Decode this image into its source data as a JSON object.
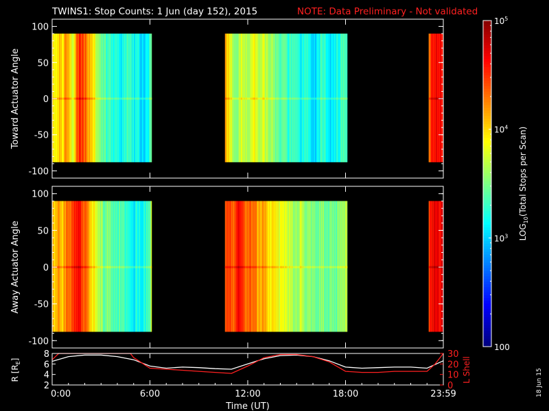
{
  "title": "TWINS1: Stop Counts:  1 Jun (day 152), 2015",
  "note": "NOTE: Data Preliminary - Not validated",
  "stamp": "18 Jun 15",
  "colors": {
    "note": "#ff2020",
    "r_line": "#ffffff",
    "l_line": "#ff2020",
    "background": "#000000"
  },
  "chart_data": [
    {
      "type": "heatmap",
      "name": "toward-panel",
      "ylabel": "Toward Actuator Angle",
      "xlim": [
        0,
        24
      ],
      "ylim": [
        -110,
        110
      ],
      "yticks": [
        100,
        50,
        0,
        -50,
        -100
      ],
      "data_extent": {
        "ymin": -88,
        "ymax": 90
      },
      "segments": [
        {
          "start": 0,
          "end": 6.1,
          "profile": [
            4.0,
            3.8,
            4.1,
            3.9,
            4.2,
            4.0,
            3.7,
            4.3,
            4.5,
            4.4,
            4.2,
            4.1,
            3.9,
            3.6,
            3.5,
            3.4,
            3.3,
            3.3,
            3.2,
            3.2,
            3.1,
            3.2,
            3.3,
            3.2,
            3.1,
            3.2,
            3.0,
            3.1,
            3.2,
            3.6
          ]
        },
        {
          "start": 10.6,
          "end": 18.1,
          "profile": [
            4.2,
            3.9,
            3.6,
            3.5,
            3.8,
            3.6,
            3.7,
            3.9,
            3.5,
            3.8,
            3.6,
            3.7,
            3.4,
            3.3,
            3.5,
            3.2,
            3.3,
            3.4,
            3.1,
            3.3,
            3.2,
            3.0,
            3.1,
            3.3,
            3.2,
            3.0,
            3.1,
            3.2,
            3.3,
            3.4
          ]
        },
        {
          "start": 23.1,
          "end": 24,
          "profile": [
            4.3,
            4.5,
            4.6,
            4.7,
            4.6,
            4.5
          ]
        }
      ]
    },
    {
      "type": "heatmap",
      "name": "away-panel",
      "ylabel": "Away Actuator Angle",
      "xlim": [
        0,
        24
      ],
      "ylim": [
        -110,
        110
      ],
      "yticks": [
        100,
        50,
        0,
        -50,
        -100
      ],
      "data_extent": {
        "ymin": -88,
        "ymax": 90
      },
      "segments": [
        {
          "start": 0,
          "end": 6.1,
          "profile": [
            4.1,
            4.0,
            4.2,
            4.0,
            4.3,
            4.2,
            4.4,
            4.6,
            4.6,
            4.4,
            4.3,
            4.0,
            3.9,
            3.7,
            3.6,
            3.4,
            3.5,
            3.4,
            3.3,
            3.3,
            3.4,
            3.3,
            3.3,
            3.2,
            3.1,
            3.2,
            3.1,
            3.2,
            3.3,
            3.8
          ]
        },
        {
          "start": 10.6,
          "end": 18.1,
          "profile": [
            4.4,
            4.5,
            4.3,
            4.6,
            4.5,
            4.2,
            4.4,
            4.3,
            4.1,
            4.2,
            4.0,
            3.9,
            3.9,
            3.8,
            3.8,
            3.7,
            3.6,
            3.6,
            3.7,
            3.5,
            3.6,
            3.5,
            3.4,
            3.6,
            3.4,
            3.5,
            3.4,
            3.5,
            3.6,
            3.7
          ]
        },
        {
          "start": 23.1,
          "end": 24,
          "profile": [
            4.4,
            4.6,
            4.7,
            4.6,
            4.7,
            4.6
          ]
        }
      ]
    },
    {
      "type": "line",
      "name": "orbit-panel",
      "xlabel": "Time (UT)",
      "xticks": [
        "0:00",
        "6:00",
        "12:00",
        "18:00",
        "23:59"
      ],
      "xtick_values": [
        0,
        6,
        12,
        18,
        24
      ],
      "ylabel_left": "R [R",
      "ylabel_left_sub": "E",
      "ylabel_left_close": "]",
      "ylabel_right": "L Shell",
      "ylim_left": [
        2,
        8
      ],
      "yticks_left": [
        8,
        6,
        4,
        2
      ],
      "ylim_right": [
        0,
        30
      ],
      "yticks_right": [
        30,
        20,
        10,
        0
      ],
      "series": [
        {
          "axis": "left",
          "x": [
            0,
            1,
            2,
            3,
            4,
            5,
            6,
            7,
            8,
            9,
            10,
            11,
            12,
            13,
            14,
            15,
            16,
            17,
            18,
            19,
            20,
            21,
            22,
            23,
            24
          ],
          "values": [
            6.5,
            7.4,
            7.7,
            7.7,
            7.4,
            6.8,
            5.6,
            5.2,
            5.4,
            5.3,
            5.1,
            5.0,
            6.0,
            7.0,
            7.6,
            7.7,
            7.4,
            6.6,
            5.4,
            5.2,
            5.3,
            5.4,
            5.4,
            5.2,
            6.6
          ]
        },
        {
          "axis": "right",
          "x": [
            0,
            0.4,
            0.5,
            4.6,
            4.8,
            5,
            6,
            7,
            8,
            9,
            10,
            11,
            12,
            13,
            14,
            15,
            16,
            17,
            18,
            19,
            20,
            21,
            22,
            23,
            23.5,
            24
          ],
          "values": [
            24,
            31,
            31,
            31,
            31,
            26,
            16,
            15,
            14,
            13,
            12,
            11,
            18,
            26,
            29,
            29,
            27,
            22,
            13,
            12,
            12,
            13,
            13,
            13,
            20,
            31
          ]
        }
      ]
    },
    {
      "type": "colorbar",
      "name": "color-scale",
      "label_prefix": "LOG",
      "label_sub": "10",
      "label_suffix": "(Total Stops per Scan)",
      "scale": "log",
      "range": [
        100,
        100000
      ],
      "ticks": [
        {
          "value": 100000,
          "base": "10",
          "exp": "5"
        },
        {
          "value": 10000,
          "base": "10",
          "exp": "4"
        },
        {
          "value": 1000,
          "base": "10",
          "exp": "3"
        },
        {
          "value": 100,
          "base": "100",
          "exp": ""
        }
      ]
    }
  ]
}
